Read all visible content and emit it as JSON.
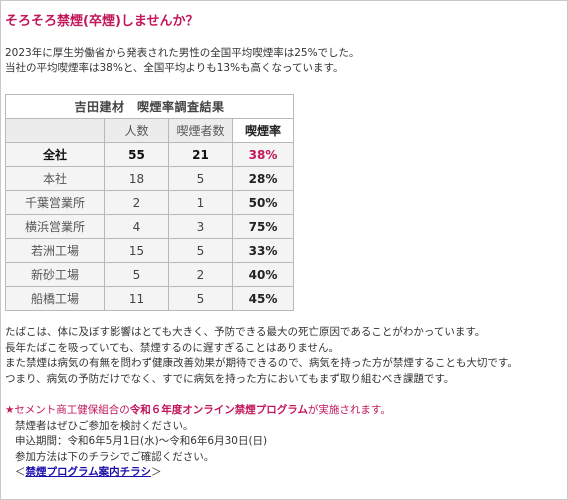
{
  "title": "そろそろ禁煙(卒煙)しませんか？",
  "intro": [
    "2023年に厚生労働省から発表された男性の全国平均喫煙率は25%でした。",
    "当社の平均喫煙率は38%と、全国平均よりも13%も高くなっています。"
  ],
  "table": {
    "caption": "吉田建材　喫煙率調査結果",
    "headers": [
      "",
      "人数",
      "喫煙者数",
      "喫煙率"
    ],
    "total": {
      "label": "全社",
      "people": "55",
      "smokers": "21",
      "rate": "38%"
    },
    "rows": [
      {
        "label": "本社",
        "people": "18",
        "smokers": "5",
        "rate": "28%"
      },
      {
        "label": "千葉営業所",
        "people": "2",
        "smokers": "1",
        "rate": "50%"
      },
      {
        "label": "横浜営業所",
        "people": "4",
        "smokers": "3",
        "rate": "75%"
      },
      {
        "label": "若洲工場",
        "people": "15",
        "smokers": "5",
        "rate": "33%"
      },
      {
        "label": "新砂工場",
        "people": "5",
        "smokers": "2",
        "rate": "40%"
      },
      {
        "label": "船橋工場",
        "people": "11",
        "smokers": "5",
        "rate": "45%"
      }
    ]
  },
  "notes": [
    "たばこは、体に及ぼす影響はとても大きく、予防できる最大の死亡原因であることがわかっています。",
    "長年たばこを吸っていても、禁煙するのに遅すぎることはありません。",
    "また禁煙は病気の有無を問わず健康改善効果が期待できるので、病気を持った方が禁煙することも大切です。",
    "つまり、病気の予防だけでなく、すでに病気を持った方においてもまず取り組むべき課題です。"
  ],
  "announce": {
    "line1_a": "★セメント商工健保組合の",
    "line1_b": "令和６年度オンライン禁煙プログラム",
    "line1_c": "が実施されます。",
    "line2": "禁煙者はぜひご参加を検討ください。",
    "line3": "申込期間：令和6年5月1日(水)～令和6年6月30日(日)",
    "line4": "参加方法は下のチラシでご確認ください。",
    "link_open": "＜",
    "link_text": "禁煙プログラム案内チラシ",
    "link_close": "＞"
  }
}
